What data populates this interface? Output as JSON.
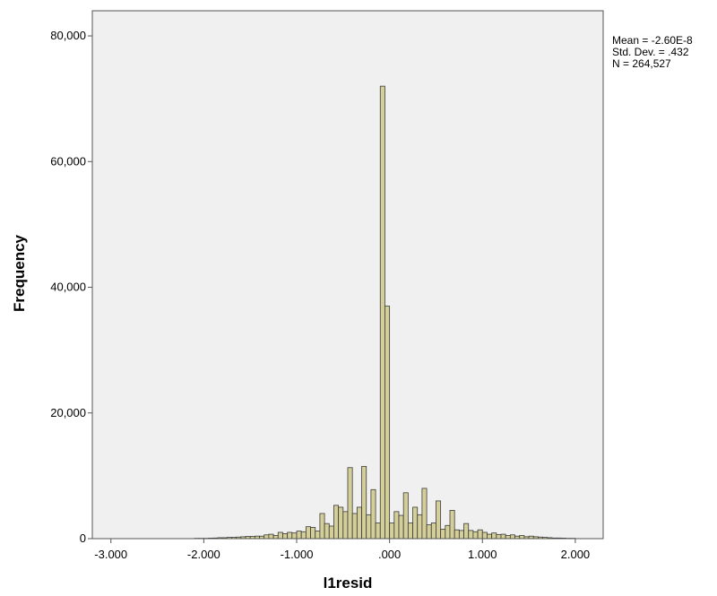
{
  "chart_data": {
    "type": "bar",
    "subtype": "histogram",
    "xlabel": "l1resid",
    "ylabel": "Frequency",
    "xlim": [
      -3.2,
      2.3
    ],
    "ylim": [
      0,
      84000
    ],
    "x_ticks": [
      -3.0,
      -2.0,
      -1.0,
      0.0,
      1.0,
      2.0
    ],
    "x_tick_labels": [
      "-3.000",
      "-2.000",
      "-1.000",
      ".000",
      "1.000",
      "2.000"
    ],
    "y_ticks": [
      0,
      20000,
      40000,
      60000,
      80000
    ],
    "y_tick_labels": [
      "0",
      "20,000",
      "40,000",
      "60,000",
      "80,000"
    ],
    "bin_width": 0.05,
    "x": [
      -2.075,
      -2.025,
      -1.975,
      -1.925,
      -1.875,
      -1.825,
      -1.775,
      -1.725,
      -1.675,
      -1.625,
      -1.575,
      -1.525,
      -1.475,
      -1.425,
      -1.375,
      -1.325,
      -1.275,
      -1.225,
      -1.175,
      -1.125,
      -1.075,
      -1.025,
      -0.975,
      -0.925,
      -0.875,
      -0.825,
      -0.775,
      -0.725,
      -0.675,
      -0.625,
      -0.575,
      -0.525,
      -0.475,
      -0.425,
      -0.375,
      -0.325,
      -0.275,
      -0.225,
      -0.175,
      -0.125,
      -0.075,
      -0.025,
      0.025,
      0.075,
      0.125,
      0.175,
      0.225,
      0.275,
      0.325,
      0.375,
      0.425,
      0.475,
      0.525,
      0.575,
      0.625,
      0.675,
      0.725,
      0.775,
      0.825,
      0.875,
      0.925,
      0.975,
      1.025,
      1.075,
      1.125,
      1.175,
      1.225,
      1.275,
      1.325,
      1.375,
      1.425,
      1.475,
      1.525,
      1.575,
      1.625,
      1.675,
      1.725,
      1.775,
      1.825,
      1.875,
      1.925,
      1.975
    ],
    "values": [
      50,
      50,
      50,
      80,
      100,
      150,
      150,
      200,
      200,
      250,
      300,
      350,
      350,
      400,
      400,
      600,
      700,
      500,
      1000,
      800,
      1000,
      900,
      1200,
      1100,
      1900,
      1800,
      1200,
      4000,
      2400,
      2000,
      5300,
      5000,
      4300,
      11300,
      4000,
      5000,
      11500,
      3800,
      7800,
      2500,
      72000,
      37000,
      2500,
      4300,
      3700,
      7300,
      2500,
      5000,
      3800,
      8000,
      2200,
      2500,
      6000,
      1500,
      2100,
      4500,
      1400,
      1300,
      2400,
      1300,
      1100,
      1400,
      1000,
      700,
      900,
      650,
      700,
      500,
      600,
      400,
      500,
      300,
      400,
      300,
      250,
      200,
      150,
      100,
      100,
      80,
      50,
      50
    ],
    "stats": {
      "mean": "Mean = -2.60E-8",
      "std": "Std. Dev. = .432",
      "n": "N = 264,527"
    },
    "colors": {
      "bar_fill": "#d4cf98",
      "bar_stroke": "#3a3a3a",
      "plot_bg": "#f0f0f0",
      "axis": "#555555"
    }
  }
}
